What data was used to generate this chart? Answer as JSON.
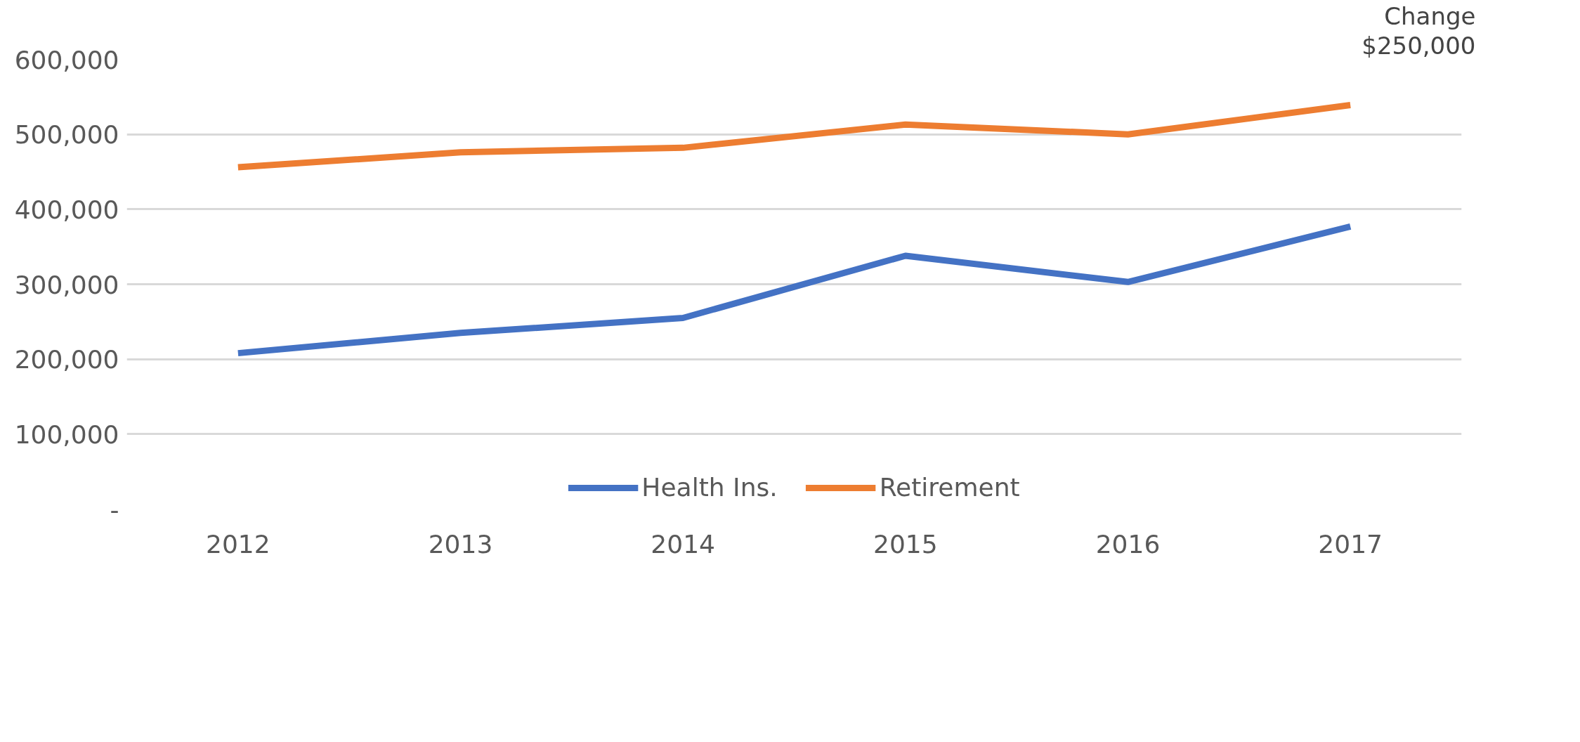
{
  "chart_data": {
    "type": "line",
    "categories": [
      "2012",
      "2013",
      "2014",
      "2015",
      "2016",
      "2017"
    ],
    "series": [
      {
        "name": "Health Ins.",
        "color": "#4472c4",
        "values": [
          208000,
          235000,
          255000,
          338000,
          303000,
          377000
        ]
      },
      {
        "name": "Retirement",
        "color": "#ed7d31",
        "values": [
          456000,
          476000,
          482000,
          513000,
          500000,
          539000
        ]
      }
    ],
    "ylim": [
      0,
      600000
    ],
    "yticks": [
      {
        "value": 0,
        "label": "-"
      },
      {
        "value": 100000,
        "label": "100,000"
      },
      {
        "value": 200000,
        "label": "200,000"
      },
      {
        "value": 300000,
        "label": "300,000"
      },
      {
        "value": 400000,
        "label": "400,000"
      },
      {
        "value": 500000,
        "label": "500,000"
      },
      {
        "value": 600000,
        "label": "600,000"
      }
    ],
    "grid": "y",
    "legend": "bottom",
    "marker": "none",
    "line_style": "solid",
    "annotations": [
      "Change",
      "$250,000"
    ]
  }
}
